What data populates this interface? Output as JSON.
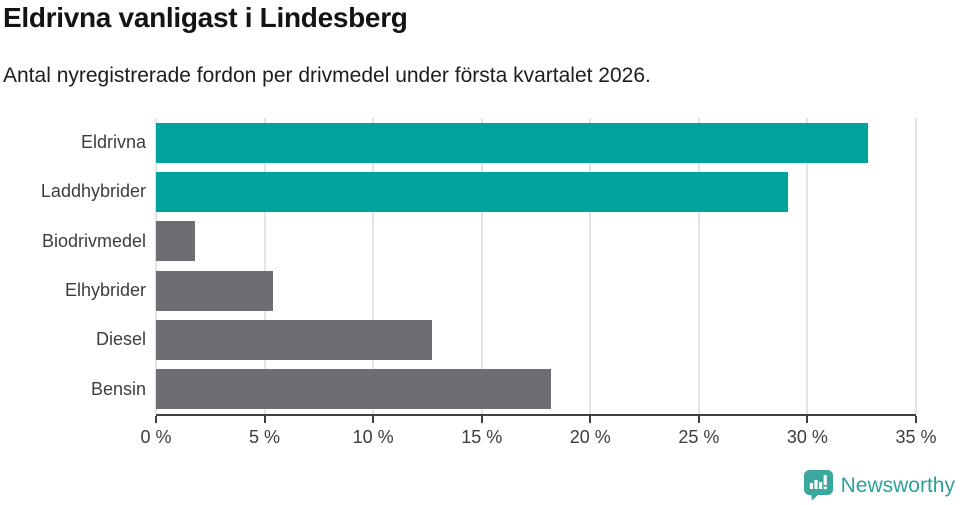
{
  "header": {
    "title": "Eldrivna vanligast i Lindesberg",
    "subtitle": "Antal nyregistrerade fordon per drivmedel under första kvartalet 2026."
  },
  "chart_data": {
    "type": "bar",
    "orientation": "horizontal",
    "title": "Eldrivna vanligast i Lindesberg",
    "subtitle": "Antal nyregistrerade fordon per drivmedel under första kvartalet 2026.",
    "categories": [
      "Eldrivna",
      "Laddhybrider",
      "Biodrivmedel",
      "Elhybrider",
      "Diesel",
      "Bensin"
    ],
    "values": [
      32.8,
      29.1,
      1.8,
      5.4,
      12.7,
      18.2
    ],
    "unit": "%",
    "bar_colors": [
      "#00A49C",
      "#00A49C",
      "#6E6D73",
      "#6E6D73",
      "#6E6D73",
      "#6E6D73"
    ],
    "xlim": [
      0,
      35
    ],
    "x_ticks": [
      {
        "value": 0,
        "label": "0 %"
      },
      {
        "value": 5,
        "label": "5 %"
      },
      {
        "value": 10,
        "label": "10 %"
      },
      {
        "value": 15,
        "label": "15 %"
      },
      {
        "value": 20,
        "label": "20 %"
      },
      {
        "value": 25,
        "label": "25 %"
      },
      {
        "value": 30,
        "label": "30 %"
      },
      {
        "value": 35,
        "label": "35 %"
      }
    ],
    "grid": "vertical-only",
    "legend": "none"
  },
  "branding": {
    "name": "Newsworthy",
    "icon": "newsworthy-chart-bubble-icon",
    "text_color": "#2DA19A",
    "icon_color": "#3BA89F"
  },
  "colors": {
    "accent_teal": "#00A49C",
    "neutral_gray": "#6E6D73",
    "axis": "#3F3F3F",
    "gridline": "#E3E3E3",
    "label_text": "#3D3D3D",
    "title_text": "#141414"
  }
}
